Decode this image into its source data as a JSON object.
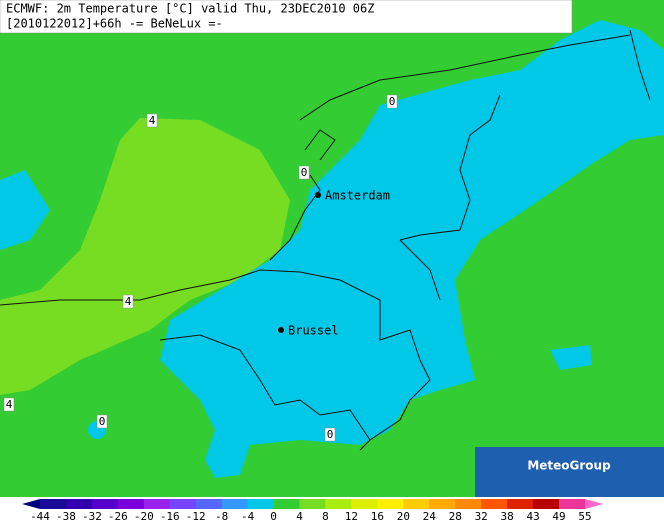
{
  "header": {
    "line1": "ECMWF: 2m Temperature [°C] valid Thu, 23DEC2010 06Z",
    "line2": "[2010122012]+66h -= BeNeLux =-"
  },
  "cities": [
    "Amsterdam",
    "Brussel"
  ],
  "contour_labels": [
    "4",
    "4",
    "4",
    "0",
    "0",
    "0",
    "0"
  ],
  "logo": "MeteoGroup",
  "legend": {
    "ticks": [
      -44,
      -38,
      -32,
      -26,
      -20,
      -16,
      -12,
      -8,
      -4,
      0,
      4,
      8,
      12,
      16,
      20,
      24,
      28,
      32,
      38,
      43,
      49,
      55
    ],
    "colors": [
      "#000080",
      "#1a0a9a",
      "#3300b0",
      "#5500cc",
      "#7a00dd",
      "#9a22ee",
      "#7744ff",
      "#5566ff",
      "#3399ff",
      "#00c8e6",
      "#33cc33",
      "#77dd22",
      "#aaee11",
      "#ddee00",
      "#ffee00",
      "#ffcc00",
      "#ffaa00",
      "#ff8800",
      "#ff5500",
      "#dd2200",
      "#bb0000",
      "#ee3399",
      "#ff66cc"
    ]
  }
}
